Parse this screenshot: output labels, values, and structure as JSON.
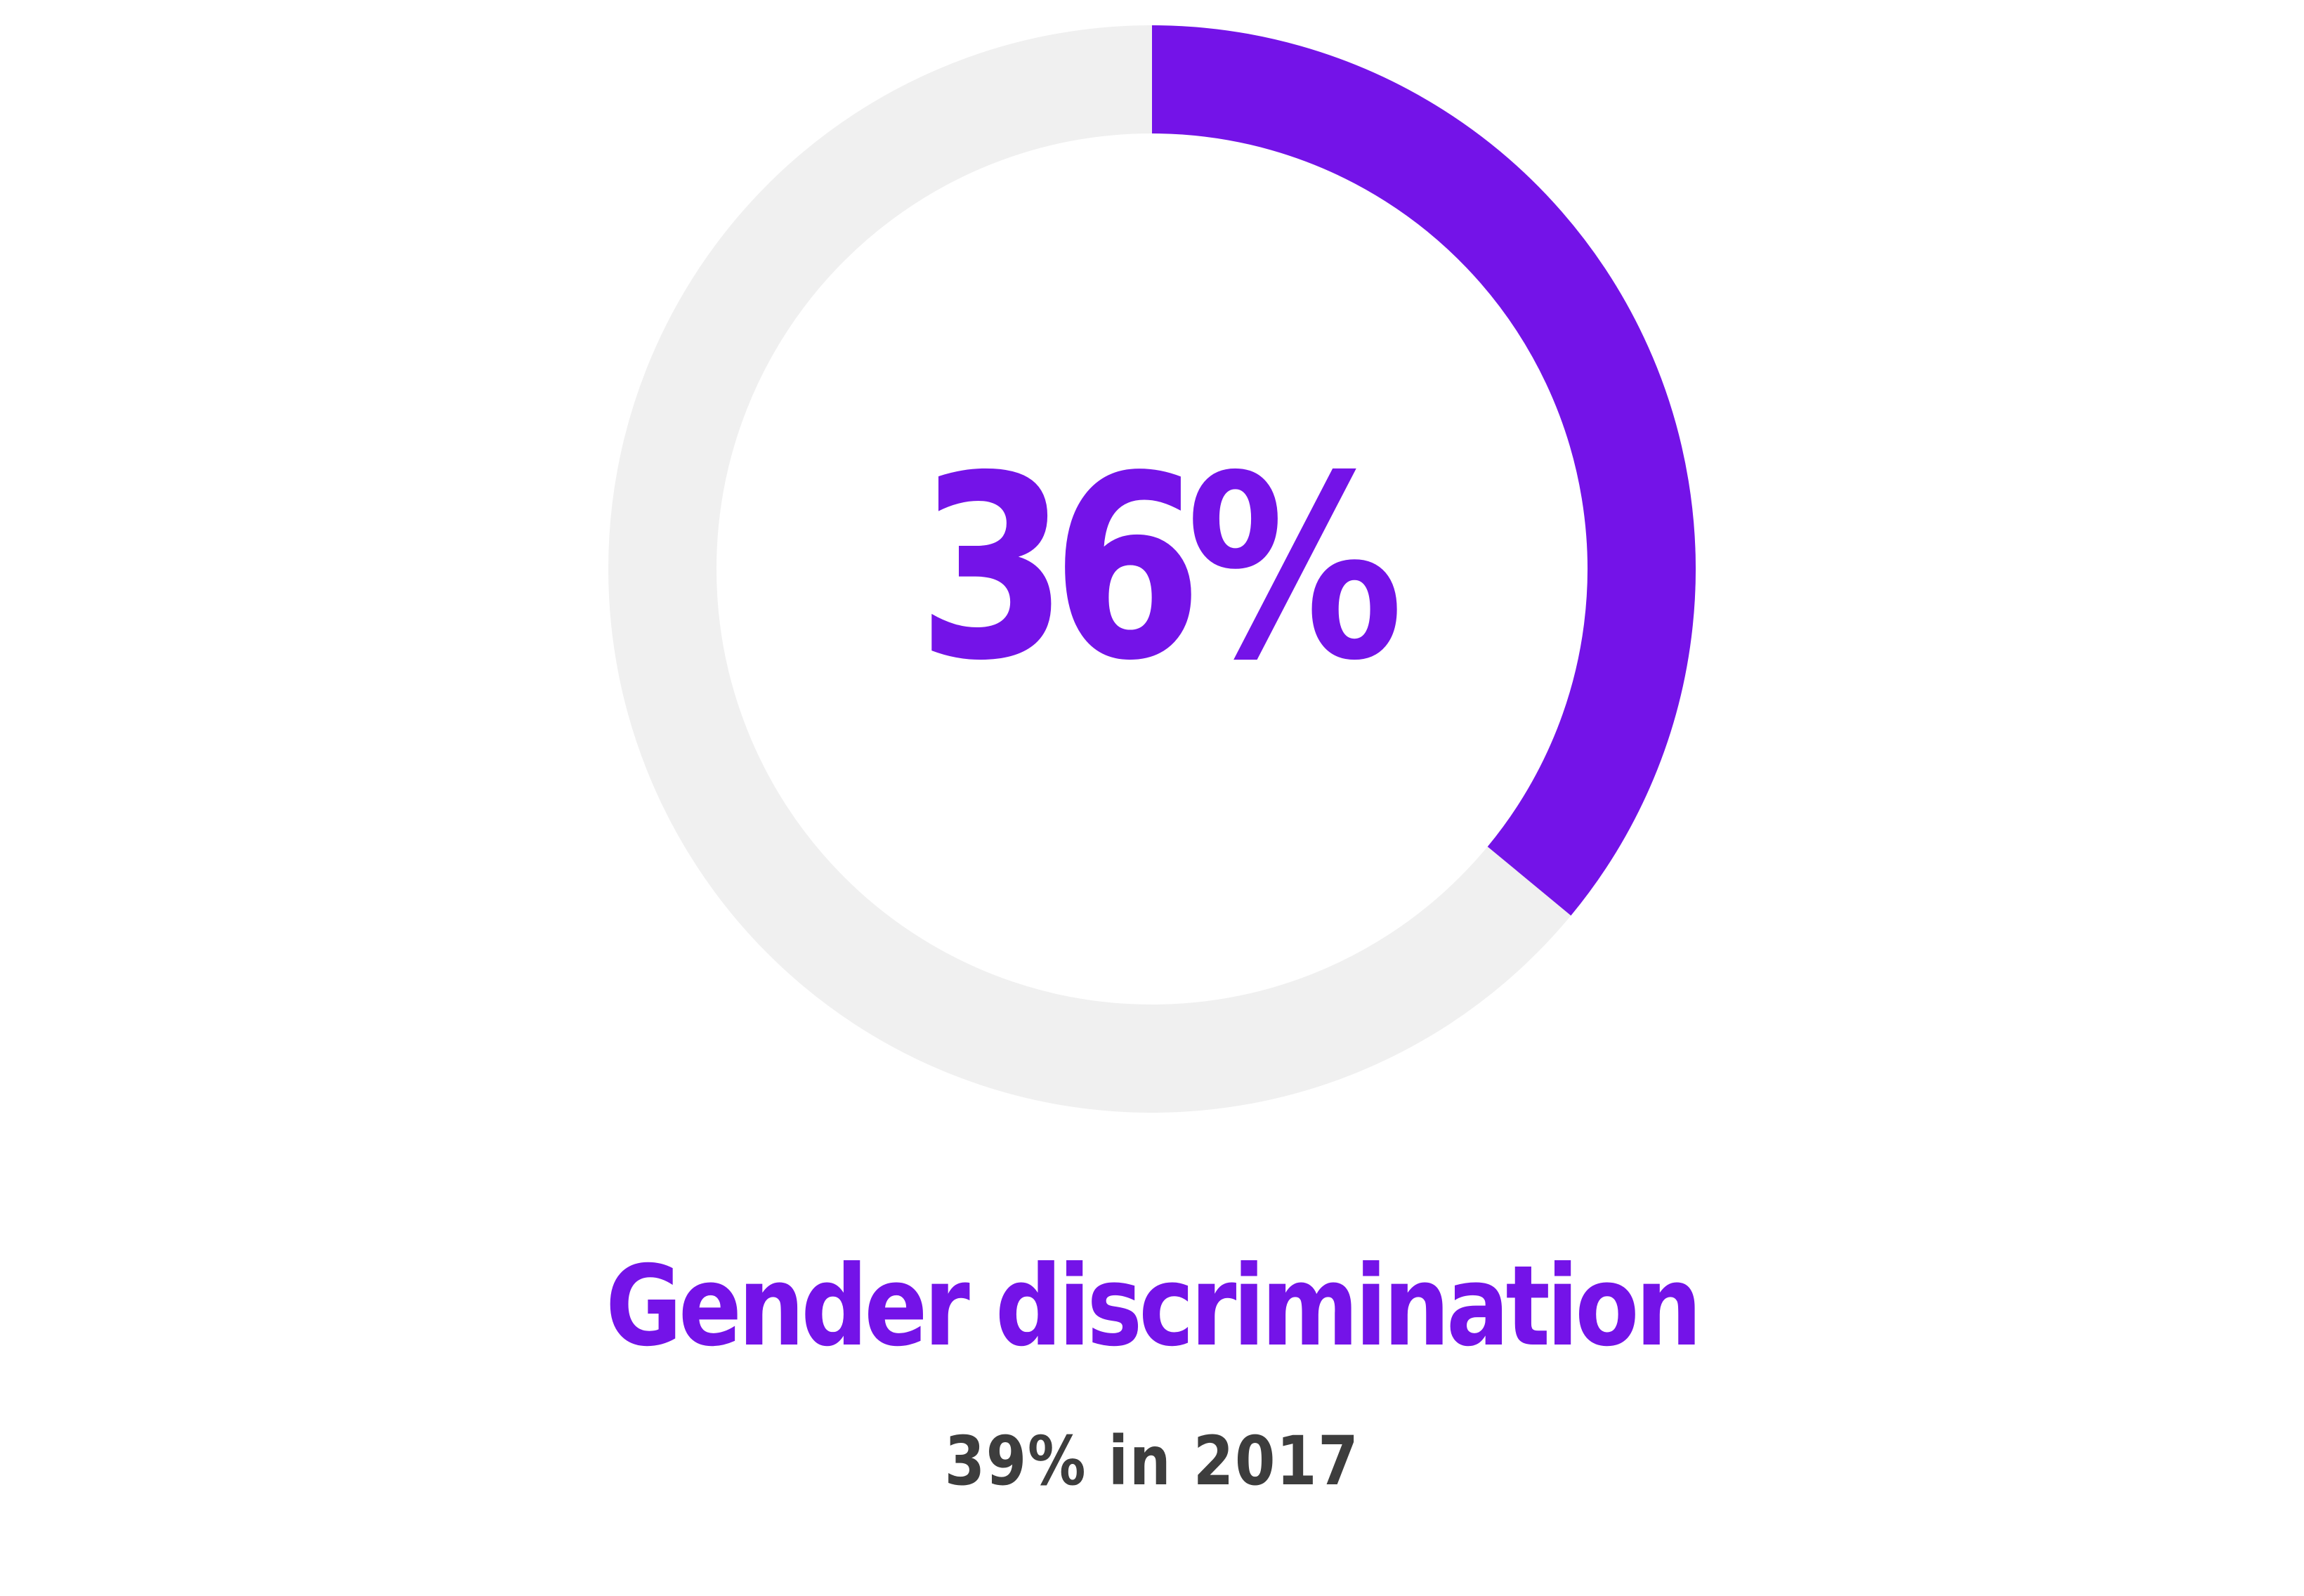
{
  "chart_data": {
    "type": "pie",
    "values": [
      36,
      64
    ],
    "center_label": "36%",
    "title": "Gender discrimination",
    "subtitle": "39% in 2017"
  },
  "colors": {
    "accent": "#7413E8",
    "track": "#F0F0F0",
    "subtitle": "#3D3D3D",
    "background": "#FFFFFF"
  }
}
